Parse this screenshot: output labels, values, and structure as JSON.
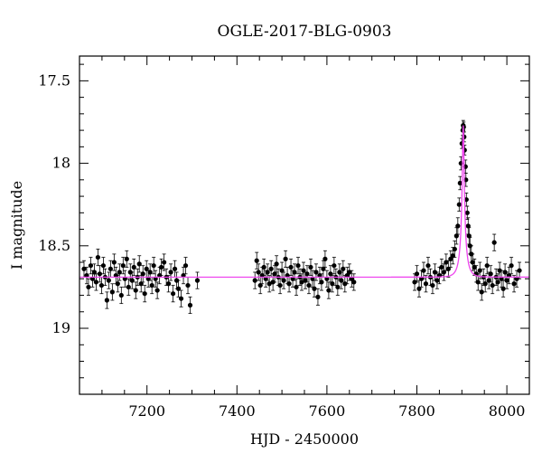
{
  "chart_data": {
    "type": "scatter",
    "title": "OGLE-2017-BLG-0903",
    "xlabel": "HJD - 2450000",
    "ylabel": "I magnitude",
    "xlim": [
      7050,
      8050
    ],
    "ylim": [
      19.4,
      17.35
    ],
    "y_inverted": true,
    "x_ticks": [
      7200,
      7400,
      7600,
      7800,
      8000
    ],
    "y_ticks": [
      17.5,
      18,
      18.5,
      19
    ],
    "x_tick_labels": [
      "7200",
      "7400",
      "7600",
      "7800",
      "8000"
    ],
    "y_tick_labels": [
      "17.5",
      "18",
      "18.5",
      "19"
    ],
    "grid": false,
    "colors": {
      "points": "#000000",
      "model": "#ee44ee"
    },
    "model": {
      "baseline_mag": 18.69,
      "peak_mag": 17.77,
      "t0": 7903,
      "tE": 13,
      "u0": 0.13
    },
    "series": [
      {
        "marker": "filled-circle-with-errorbars",
        "points": [
          [
            7060,
            18.64,
            0.05
          ],
          [
            7066,
            18.68,
            0.05
          ],
          [
            7070,
            18.75,
            0.05
          ],
          [
            7075,
            18.62,
            0.05
          ],
          [
            7079,
            18.7,
            0.05
          ],
          [
            7083,
            18.66,
            0.05
          ],
          [
            7087,
            18.72,
            0.05
          ],
          [
            7091,
            18.57,
            0.05
          ],
          [
            7095,
            18.67,
            0.05
          ],
          [
            7099,
            18.74,
            0.05
          ],
          [
            7103,
            18.62,
            0.05
          ],
          [
            7107,
            18.69,
            0.05
          ],
          [
            7111,
            18.83,
            0.05
          ],
          [
            7115,
            18.71,
            0.05
          ],
          [
            7119,
            18.64,
            0.05
          ],
          [
            7123,
            18.78,
            0.05
          ],
          [
            7127,
            18.6,
            0.05
          ],
          [
            7131,
            18.68,
            0.05
          ],
          [
            7135,
            18.73,
            0.05
          ],
          [
            7139,
            18.66,
            0.05
          ],
          [
            7143,
            18.8,
            0.05
          ],
          [
            7147,
            18.62,
            0.05
          ],
          [
            7151,
            18.7,
            0.05
          ],
          [
            7155,
            18.58,
            0.05
          ],
          [
            7159,
            18.75,
            0.05
          ],
          [
            7163,
            18.66,
            0.05
          ],
          [
            7167,
            18.71,
            0.05
          ],
          [
            7171,
            18.63,
            0.05
          ],
          [
            7175,
            18.77,
            0.05
          ],
          [
            7179,
            18.69,
            0.05
          ],
          [
            7183,
            18.61,
            0.05
          ],
          [
            7187,
            18.73,
            0.05
          ],
          [
            7191,
            18.67,
            0.05
          ],
          [
            7195,
            18.79,
            0.05
          ],
          [
            7199,
            18.64,
            0.05
          ],
          [
            7203,
            18.7,
            0.05
          ],
          [
            7207,
            18.66,
            0.05
          ],
          [
            7211,
            18.74,
            0.05
          ],
          [
            7215,
            18.62,
            0.05
          ],
          [
            7219,
            18.7,
            0.05
          ],
          [
            7223,
            18.77,
            0.05
          ],
          [
            7228,
            18.68,
            0.05
          ],
          [
            7232,
            18.63,
            0.05
          ],
          [
            7238,
            18.6,
            0.05
          ],
          [
            7243,
            18.69,
            0.05
          ],
          [
            7248,
            18.73,
            0.05
          ],
          [
            7253,
            18.66,
            0.05
          ],
          [
            7258,
            18.79,
            0.05
          ],
          [
            7262,
            18.64,
            0.05
          ],
          [
            7266,
            18.71,
            0.05
          ],
          [
            7270,
            18.76,
            0.05
          ],
          [
            7276,
            18.82,
            0.05
          ],
          [
            7281,
            18.68,
            0.05
          ],
          [
            7286,
            18.62,
            0.05
          ],
          [
            7291,
            18.74,
            0.05
          ],
          [
            7296,
            18.86,
            0.05
          ],
          [
            7312,
            18.71,
            0.05
          ],
          [
            7440,
            18.71,
            0.05
          ],
          [
            7444,
            18.59,
            0.05
          ],
          [
            7448,
            18.66,
            0.05
          ],
          [
            7452,
            18.74,
            0.05
          ],
          [
            7456,
            18.68,
            0.05
          ],
          [
            7460,
            18.63,
            0.05
          ],
          [
            7464,
            18.7,
            0.05
          ],
          [
            7468,
            18.66,
            0.05
          ],
          [
            7472,
            18.73,
            0.05
          ],
          [
            7476,
            18.64,
            0.05
          ],
          [
            7480,
            18.72,
            0.05
          ],
          [
            7484,
            18.67,
            0.05
          ],
          [
            7488,
            18.61,
            0.05
          ],
          [
            7492,
            18.69,
            0.05
          ],
          [
            7496,
            18.74,
            0.05
          ],
          [
            7500,
            18.65,
            0.05
          ],
          [
            7504,
            18.71,
            0.05
          ],
          [
            7508,
            18.58,
            0.05
          ],
          [
            7512,
            18.68,
            0.05
          ],
          [
            7516,
            18.73,
            0.05
          ],
          [
            7520,
            18.63,
            0.05
          ],
          [
            7524,
            18.7,
            0.05
          ],
          [
            7528,
            18.66,
            0.05
          ],
          [
            7532,
            18.75,
            0.05
          ],
          [
            7536,
            18.62,
            0.05
          ],
          [
            7540,
            18.69,
            0.05
          ],
          [
            7544,
            18.72,
            0.05
          ],
          [
            7548,
            18.65,
            0.05
          ],
          [
            7552,
            18.71,
            0.05
          ],
          [
            7556,
            18.67,
            0.05
          ],
          [
            7560,
            18.74,
            0.05
          ],
          [
            7564,
            18.63,
            0.05
          ],
          [
            7568,
            18.7,
            0.05
          ],
          [
            7572,
            18.76,
            0.05
          ],
          [
            7576,
            18.66,
            0.05
          ],
          [
            7580,
            18.81,
            0.05
          ],
          [
            7584,
            18.68,
            0.05
          ],
          [
            7588,
            18.72,
            0.05
          ],
          [
            7592,
            18.64,
            0.05
          ],
          [
            7596,
            18.58,
            0.05
          ],
          [
            7600,
            18.7,
            0.05
          ],
          [
            7604,
            18.77,
            0.05
          ],
          [
            7608,
            18.67,
            0.05
          ],
          [
            7612,
            18.73,
            0.05
          ],
          [
            7616,
            18.62,
            0.05
          ],
          [
            7620,
            18.69,
            0.05
          ],
          [
            7624,
            18.75,
            0.05
          ],
          [
            7628,
            18.66,
            0.05
          ],
          [
            7632,
            18.71,
            0.05
          ],
          [
            7636,
            18.64,
            0.05
          ],
          [
            7640,
            18.73,
            0.05
          ],
          [
            7645,
            18.68,
            0.05
          ],
          [
            7650,
            18.66,
            0.05
          ],
          [
            7655,
            18.7,
            0.05
          ],
          [
            7660,
            18.72,
            0.05
          ],
          [
            7795,
            18.72,
            0.05
          ],
          [
            7800,
            18.67,
            0.05
          ],
          [
            7805,
            18.76,
            0.05
          ],
          [
            7810,
            18.7,
            0.05
          ],
          [
            7815,
            18.65,
            0.05
          ],
          [
            7820,
            18.73,
            0.05
          ],
          [
            7825,
            18.62,
            0.05
          ],
          [
            7830,
            18.69,
            0.05
          ],
          [
            7835,
            18.74,
            0.05
          ],
          [
            7840,
            18.66,
            0.05
          ],
          [
            7845,
            18.71,
            0.05
          ],
          [
            7850,
            18.68,
            0.05
          ],
          [
            7855,
            18.63,
            0.05
          ],
          [
            7860,
            18.66,
            0.05
          ],
          [
            7865,
            18.6,
            0.05
          ],
          [
            7870,
            18.64,
            0.05
          ],
          [
            7875,
            18.58,
            0.05
          ],
          [
            7880,
            18.56,
            0.05
          ],
          [
            7884,
            18.52,
            0.05
          ],
          [
            7888,
            18.44,
            0.05
          ],
          [
            7891,
            18.38,
            0.05
          ],
          [
            7894,
            18.25,
            0.04
          ],
          [
            7896,
            18.12,
            0.04
          ],
          [
            7898,
            18.0,
            0.04
          ],
          [
            7900,
            17.88,
            0.03
          ],
          [
            7902,
            17.8,
            0.03
          ],
          [
            7903,
            17.77,
            0.03
          ],
          [
            7904,
            17.78,
            0.03
          ],
          [
            7905,
            17.84,
            0.03
          ],
          [
            7906,
            17.92,
            0.03
          ],
          [
            7908,
            18.02,
            0.04
          ],
          [
            7909,
            18.1,
            0.04
          ],
          [
            7910,
            18.22,
            0.04
          ],
          [
            7912,
            18.3,
            0.04
          ],
          [
            7914,
            18.38,
            0.05
          ],
          [
            7916,
            18.44,
            0.05
          ],
          [
            7918,
            18.5,
            0.05
          ],
          [
            7921,
            18.55,
            0.05
          ],
          [
            7924,
            18.6,
            0.05
          ],
          [
            7928,
            18.63,
            0.05
          ],
          [
            7932,
            18.67,
            0.05
          ],
          [
            7936,
            18.72,
            0.05
          ],
          [
            7940,
            18.65,
            0.05
          ],
          [
            7944,
            18.78,
            0.05
          ],
          [
            7948,
            18.69,
            0.05
          ],
          [
            7952,
            18.73,
            0.05
          ],
          [
            7956,
            18.62,
            0.05
          ],
          [
            7960,
            18.71,
            0.05
          ],
          [
            7964,
            18.67,
            0.05
          ],
          [
            7968,
            18.74,
            0.05
          ],
          [
            7972,
            18.48,
            0.05
          ],
          [
            7976,
            18.69,
            0.05
          ],
          [
            7980,
            18.72,
            0.05
          ],
          [
            7984,
            18.65,
            0.05
          ],
          [
            7988,
            18.7,
            0.05
          ],
          [
            7992,
            18.76,
            0.05
          ],
          [
            7996,
            18.66,
            0.05
          ],
          [
            8000,
            18.71,
            0.05
          ],
          [
            8005,
            18.68,
            0.05
          ],
          [
            8010,
            18.62,
            0.05
          ],
          [
            8016,
            18.73,
            0.05
          ],
          [
            8022,
            18.7,
            0.05
          ],
          [
            8028,
            18.65,
            0.05
          ]
        ]
      }
    ]
  }
}
